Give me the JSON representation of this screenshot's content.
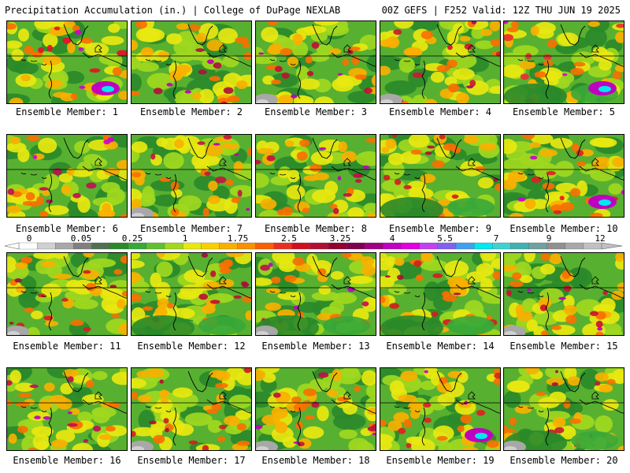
{
  "header": {
    "title_left": "Precipitation Accumulation (in.) | College of DuPage NEXLAB",
    "title_right": "00Z GEFS | F252 Valid: 12Z THU JUN 19 2025"
  },
  "panel_prefix": "Ensemble Member: ",
  "panels": [
    {
      "member": "1",
      "accent": "#e8102a",
      "hot": "#d000d0",
      "cyan": true,
      "gray": false,
      "lowGreen": false
    },
    {
      "member": "2",
      "accent": "#b0103a",
      "hot": "#c000b0",
      "cyan": false,
      "gray": false,
      "lowGreen": false
    },
    {
      "member": "3",
      "accent": "#c01030",
      "hot": "#c000c0",
      "cyan": false,
      "gray": true,
      "lowGreen": false
    },
    {
      "member": "4",
      "accent": "#d01830",
      "hot": "#a01060",
      "cyan": false,
      "gray": true,
      "lowGreen": false
    },
    {
      "member": "5",
      "accent": "#e83030",
      "hot": "#d000d0",
      "cyan": true,
      "gray": false,
      "lowGreen": true
    },
    {
      "member": "6",
      "accent": "#c01050",
      "hot": "#d000d0",
      "cyan": false,
      "gray": false,
      "lowGreen": false
    },
    {
      "member": "7",
      "accent": "#c01840",
      "hot": "#c000b0",
      "cyan": false,
      "gray": true,
      "lowGreen": false
    },
    {
      "member": "8",
      "accent": "#c01040",
      "hot": "#c000c0",
      "cyan": false,
      "gray": false,
      "lowGreen": false
    },
    {
      "member": "9",
      "accent": "#d02020",
      "hot": "#b01030",
      "cyan": false,
      "gray": false,
      "lowGreen": true
    },
    {
      "member": "10",
      "accent": "#e02020",
      "hot": "#d000d0",
      "cyan": true,
      "gray": false,
      "lowGreen": false
    },
    {
      "member": "11",
      "accent": "#d02020",
      "hot": "#a01040",
      "cyan": false,
      "gray": true,
      "lowGreen": false
    },
    {
      "member": "12",
      "accent": "#c01030",
      "hot": "#a01040",
      "cyan": false,
      "gray": false,
      "lowGreen": true
    },
    {
      "member": "13",
      "accent": "#c01050",
      "hot": "#c000c0",
      "cyan": false,
      "gray": true,
      "lowGreen": true
    },
    {
      "member": "14",
      "accent": "#d02020",
      "hot": "#b01030",
      "cyan": false,
      "gray": false,
      "lowGreen": true
    },
    {
      "member": "15",
      "accent": "#d01030",
      "hot": "#c000c0",
      "cyan": false,
      "gray": true,
      "lowGreen": false
    },
    {
      "member": "16",
      "accent": "#c01050",
      "hot": "#c000c0",
      "cyan": false,
      "gray": false,
      "lowGreen": false
    },
    {
      "member": "17",
      "accent": "#d02020",
      "hot": "#b01030",
      "cyan": false,
      "gray": true,
      "lowGreen": false
    },
    {
      "member": "18",
      "accent": "#c01040",
      "hot": "#c000c0",
      "cyan": false,
      "gray": true,
      "lowGreen": false
    },
    {
      "member": "19",
      "accent": "#e02020",
      "hot": "#d000d0",
      "cyan": true,
      "gray": false,
      "lowGreen": false
    },
    {
      "member": "20",
      "accent": "#c02030",
      "hot": "#a01040",
      "cyan": false,
      "gray": true,
      "lowGreen": true
    }
  ],
  "colorbar": {
    "labels": [
      "0",
      "0.05",
      "0.25",
      "1",
      "1.75",
      "2.5",
      "3.25",
      "4",
      "5.5",
      "7",
      "9",
      "12"
    ],
    "colors": [
      "#ffffff",
      "#d0d0d0",
      "#a8a8a8",
      "#808080",
      "#507050",
      "#2a8a2a",
      "#38a838",
      "#60c030",
      "#a0d820",
      "#e8e810",
      "#f8d000",
      "#f8b000",
      "#f89000",
      "#f86000",
      "#e83020",
      "#d01020",
      "#b01030",
      "#900030",
      "#800050",
      "#a00080",
      "#c000c0",
      "#e000e0",
      "#c040f0",
      "#8060f0",
      "#40a0f0",
      "#00e8f0",
      "#40d0d0",
      "#40b0b0",
      "#70a0a0",
      "#909090",
      "#a8a8a8",
      "#c0c0c0"
    ]
  }
}
